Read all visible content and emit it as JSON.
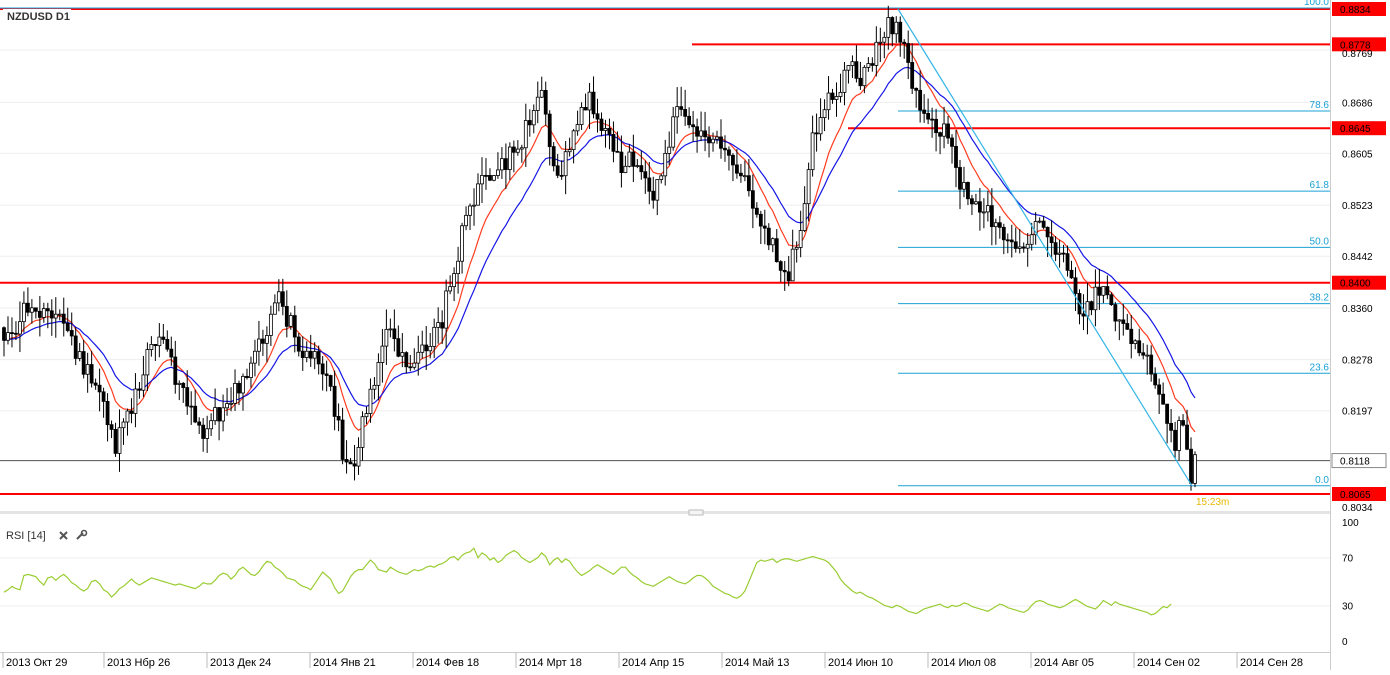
{
  "window": {
    "symbol_label": "NZDUSD D1"
  },
  "rsi_panel": {
    "label": "RSI [14]",
    "close_icon": "close-icon",
    "settings_icon": "wrench-icon",
    "axis_ticks": [
      "100",
      "70",
      "30",
      "0"
    ]
  },
  "countdown": "15:23m",
  "colors": {
    "candle": "#000000",
    "grid": "#eeeeee",
    "level_line": "#ff0000",
    "price_label_bg": "#ff0000",
    "fib": "#1ba1d6",
    "trendline": "#33b5e5",
    "ema_fast": "#ff3b1f",
    "ema_slow": "#1515e6",
    "rsi_line": "#9acd32",
    "current_price_line": "#555555",
    "countdown": "#e6b800"
  },
  "chart_data": [
    {
      "type": "candlestick",
      "title": "NZDUSD D1",
      "price_axis_ticks": [
        "0.8834",
        "0.8769",
        "0.8686",
        "0.8605",
        "0.8523",
        "0.8442",
        "0.8360",
        "0.8278",
        "0.8197",
        "0.8118",
        "0.8034"
      ],
      "ylim": [
        0.803,
        0.8842
      ],
      "xlabels": [
        "2013 Окт 29",
        "2013 Нбр 26",
        "2013 Дек 24",
        "2014 Янв 21",
        "2014 Фев 18",
        "2014 Мрт 18",
        "2014 Апр 15",
        "2014 Май 13",
        "2014 Июн 10",
        "2014 Июл 08",
        "2014 Авг 05",
        "2014 Сен 02",
        "2014 Сен 28"
      ],
      "horizontal_levels": [
        {
          "price": "0.8834",
          "value": 0.8834
        },
        {
          "price": "0.8778",
          "value": 0.8778
        },
        {
          "price": "0.8645",
          "value": 0.8645
        },
        {
          "price": "0.8400",
          "value": 0.84
        },
        {
          "price": "0.8065",
          "value": 0.8065
        }
      ],
      "current_price": {
        "price": "0.8118",
        "value": 0.8118
      },
      "fibonacci": {
        "high": 0.8834,
        "low": 0.8078,
        "levels": [
          {
            "label": "100.0",
            "ratio": 1.0
          },
          {
            "label": "78.6",
            "ratio": 0.786
          },
          {
            "label": "61.8",
            "ratio": 0.618
          },
          {
            "label": "50.0",
            "ratio": 0.5
          },
          {
            "label": "38.2",
            "ratio": 0.382
          },
          {
            "label": "23.6",
            "ratio": 0.236
          },
          {
            "label": "0.0",
            "ratio": 0.0
          }
        ]
      },
      "trendline": {
        "from_bar": 219,
        "from_price": 0.8834,
        "to_bar": 297,
        "to_price": 0.8078
      },
      "key_points": [
        {
          "bar": 0,
          "price": 0.83
        },
        {
          "bar": 7,
          "price": 0.837
        },
        {
          "bar": 15,
          "price": 0.833
        },
        {
          "bar": 22,
          "price": 0.825
        },
        {
          "bar": 28,
          "price": 0.814
        },
        {
          "bar": 33,
          "price": 0.822
        },
        {
          "bar": 37,
          "price": 0.832
        },
        {
          "bar": 40,
          "price": 0.831
        },
        {
          "bar": 44,
          "price": 0.823
        },
        {
          "bar": 50,
          "price": 0.817
        },
        {
          "bar": 55,
          "price": 0.82
        },
        {
          "bar": 60,
          "price": 0.825
        },
        {
          "bar": 66,
          "price": 0.833
        },
        {
          "bar": 69,
          "price": 0.838
        },
        {
          "bar": 74,
          "price": 0.83
        },
        {
          "bar": 80,
          "price": 0.826
        },
        {
          "bar": 83,
          "price": 0.82
        },
        {
          "bar": 86,
          "price": 0.81
        },
        {
          "bar": 88,
          "price": 0.812
        },
        {
          "bar": 92,
          "price": 0.823
        },
        {
          "bar": 96,
          "price": 0.832
        },
        {
          "bar": 101,
          "price": 0.828
        },
        {
          "bar": 105,
          "price": 0.829
        },
        {
          "bar": 109,
          "price": 0.832
        },
        {
          "bar": 113,
          "price": 0.842
        },
        {
          "bar": 117,
          "price": 0.853
        },
        {
          "bar": 121,
          "price": 0.856
        },
        {
          "bar": 126,
          "price": 0.859
        },
        {
          "bar": 131,
          "price": 0.864
        },
        {
          "bar": 135,
          "price": 0.869
        },
        {
          "bar": 139,
          "price": 0.856
        },
        {
          "bar": 143,
          "price": 0.863
        },
        {
          "bar": 147,
          "price": 0.87
        },
        {
          "bar": 151,
          "price": 0.864
        },
        {
          "bar": 155,
          "price": 0.858
        },
        {
          "bar": 159,
          "price": 0.86
        },
        {
          "bar": 163,
          "price": 0.854
        },
        {
          "bar": 167,
          "price": 0.863
        },
        {
          "bar": 170,
          "price": 0.868
        },
        {
          "bar": 174,
          "price": 0.862
        },
        {
          "bar": 178,
          "price": 0.864
        },
        {
          "bar": 182,
          "price": 0.86
        },
        {
          "bar": 186,
          "price": 0.856
        },
        {
          "bar": 190,
          "price": 0.85
        },
        {
          "bar": 194,
          "price": 0.844
        },
        {
          "bar": 197,
          "price": 0.842
        },
        {
          "bar": 200,
          "price": 0.85
        },
        {
          "bar": 203,
          "price": 0.862
        },
        {
          "bar": 206,
          "price": 0.868
        },
        {
          "bar": 209,
          "price": 0.87
        },
        {
          "bar": 212,
          "price": 0.874
        },
        {
          "bar": 215,
          "price": 0.872
        },
        {
          "bar": 218,
          "price": 0.876
        },
        {
          "bar": 221,
          "price": 0.88
        },
        {
          "bar": 224,
          "price": 0.881
        },
        {
          "bar": 226,
          "price": 0.877
        },
        {
          "bar": 229,
          "price": 0.87
        },
        {
          "bar": 232,
          "price": 0.866
        },
        {
          "bar": 236,
          "price": 0.864
        },
        {
          "bar": 240,
          "price": 0.856
        },
        {
          "bar": 244,
          "price": 0.853
        },
        {
          "bar": 248,
          "price": 0.85
        },
        {
          "bar": 252,
          "price": 0.847
        },
        {
          "bar": 256,
          "price": 0.847
        },
        {
          "bar": 259,
          "price": 0.849
        },
        {
          "bar": 262,
          "price": 0.847
        },
        {
          "bar": 266,
          "price": 0.843
        },
        {
          "bar": 270,
          "price": 0.836
        },
        {
          "bar": 274,
          "price": 0.838
        },
        {
          "bar": 277,
          "price": 0.838
        },
        {
          "bar": 281,
          "price": 0.832
        },
        {
          "bar": 285,
          "price": 0.83
        },
        {
          "bar": 289,
          "price": 0.825
        },
        {
          "bar": 292,
          "price": 0.818
        },
        {
          "bar": 294,
          "price": 0.815
        },
        {
          "bar": 296,
          "price": 0.819
        },
        {
          "bar": 298,
          "price": 0.809
        },
        {
          "bar": 299,
          "price": 0.8118
        }
      ]
    },
    {
      "type": "line",
      "title": "RSI [14]",
      "ylim": [
        0,
        100
      ],
      "series": [
        {
          "name": "RSI [14]",
          "values": [
            41,
            43,
            46,
            44,
            43,
            55,
            56,
            55,
            54,
            50,
            47,
            53,
            54,
            51,
            54,
            56,
            53,
            49,
            47,
            44,
            42,
            44,
            50,
            51,
            48,
            43,
            41,
            37,
            40,
            44,
            46,
            49,
            52,
            49,
            47,
            49,
            51,
            53,
            52,
            51,
            50,
            49,
            48,
            47,
            48,
            47,
            46,
            45,
            44,
            46,
            49,
            48,
            48,
            51,
            55,
            57,
            56,
            52,
            55,
            60,
            62,
            59,
            56,
            55,
            58,
            63,
            67,
            66,
            62,
            60,
            57,
            53,
            52,
            51,
            48,
            46,
            45,
            43,
            48,
            53,
            58,
            55,
            52,
            45,
            40,
            42,
            48,
            54,
            58,
            60,
            60,
            64,
            68,
            65,
            60,
            59,
            58,
            62,
            60,
            58,
            57,
            56,
            58,
            60,
            59,
            60,
            62,
            63,
            62,
            64,
            65,
            67,
            70,
            71,
            68,
            72,
            74,
            75,
            78,
            70,
            74,
            72,
            68,
            70,
            66,
            68,
            72,
            74,
            76,
            74,
            70,
            68,
            66,
            68,
            70,
            74,
            71,
            64,
            68,
            70,
            66,
            69,
            67,
            62,
            58,
            55,
            57,
            59,
            62,
            64,
            62,
            60,
            58,
            56,
            59,
            62,
            62,
            58,
            55,
            53,
            50,
            48,
            47,
            46,
            48,
            50,
            52,
            54,
            52,
            50,
            49,
            48,
            50,
            53,
            55,
            55,
            53,
            50,
            46,
            44,
            42,
            40,
            39,
            37,
            36,
            38,
            42,
            50,
            58,
            66,
            68,
            67,
            68,
            69,
            66,
            68,
            69,
            69,
            68,
            67,
            68,
            69,
            70,
            71,
            70,
            69,
            68,
            66,
            62,
            58,
            52,
            48,
            45,
            42,
            40,
            41,
            39,
            37,
            36,
            34,
            32,
            30,
            29,
            28,
            30,
            29,
            27,
            25,
            24,
            23,
            25,
            27,
            28,
            29,
            30,
            31,
            29,
            28,
            30,
            29,
            30,
            32,
            31,
            29,
            28,
            27,
            26,
            25,
            27,
            29,
            31,
            30,
            28,
            27,
            26,
            25,
            24,
            26,
            30,
            33,
            34,
            33,
            31,
            30,
            29,
            28,
            29,
            31,
            33,
            35,
            33,
            31,
            29,
            28,
            27,
            30,
            34,
            32,
            30,
            33,
            31,
            30,
            29,
            28,
            27,
            26,
            25,
            24,
            22,
            23,
            26,
            29,
            28,
            31
          ]
        }
      ]
    }
  ]
}
